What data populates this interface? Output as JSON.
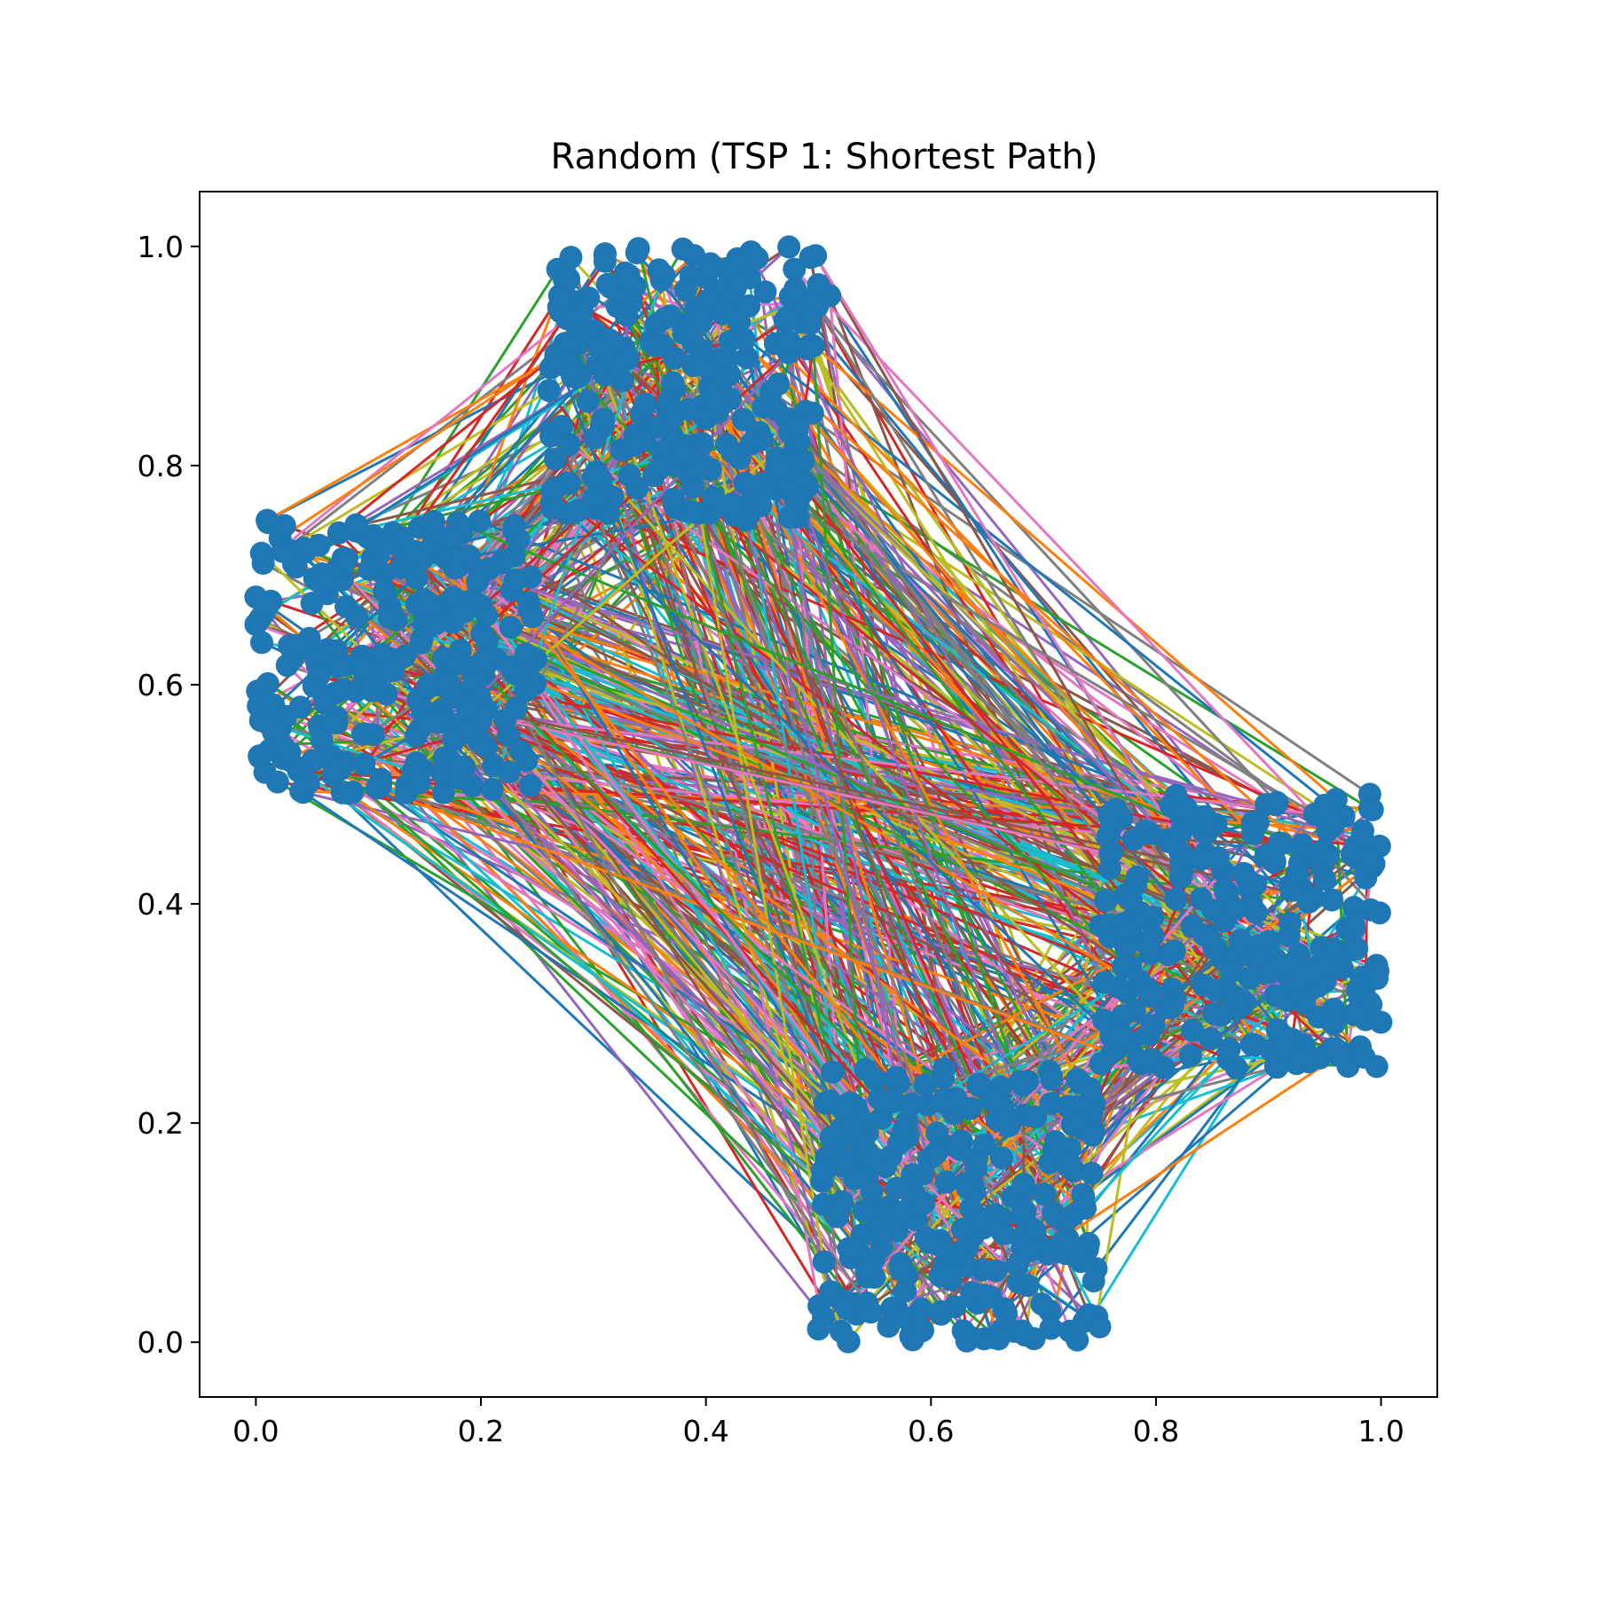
{
  "chart_data": {
    "type": "line",
    "title": "Random (TSP 1: Shortest Path)",
    "xlabel": "",
    "ylabel": "",
    "xlim": [
      -0.05,
      1.05
    ],
    "ylim": [
      -0.05,
      1.05
    ],
    "x_ticks": [
      "0.0",
      "0.2",
      "0.4",
      "0.6",
      "0.8",
      "1.0"
    ],
    "y_ticks": [
      "0.0",
      "0.2",
      "0.4",
      "0.6",
      "0.8",
      "1.0"
    ],
    "grid": false,
    "legend": "none",
    "marker_color": "#1f77b4",
    "edge_colors": [
      "#1f77b4",
      "#ff7f0e",
      "#2ca02c",
      "#d62728",
      "#9467bd",
      "#8c564b",
      "#e377c2",
      "#7f7f7f",
      "#bcbd22",
      "#17becf"
    ],
    "clusters": [
      {
        "name": "",
        "x_range": [
          0.0,
          0.25
        ],
        "y_range": [
          0.5,
          0.75
        ]
      },
      {
        "name": "",
        "x_range": [
          0.26,
          0.5
        ],
        "y_range": [
          0.75,
          1.0
        ]
      },
      {
        "name": "",
        "x_range": [
          0.75,
          1.0
        ],
        "y_range": [
          0.25,
          0.5
        ]
      },
      {
        "name": "",
        "x_range": [
          0.5,
          0.75
        ],
        "y_range": [
          0.0,
          0.25
        ]
      }
    ],
    "sample_points": [
      [
        0.01,
        0.75
      ],
      [
        0.005,
        0.72
      ],
      [
        0.0,
        0.68
      ],
      [
        0.0,
        0.655
      ],
      [
        0.003,
        0.535
      ],
      [
        0.008,
        0.52
      ],
      [
        0.04,
        0.503
      ],
      [
        0.09,
        0.745
      ],
      [
        0.23,
        0.745
      ],
      [
        0.01,
        0.565
      ],
      [
        0.27,
        0.955
      ],
      [
        0.28,
        0.99
      ],
      [
        0.34,
        0.998
      ],
      [
        0.44,
        0.995
      ],
      [
        0.5,
        0.965
      ],
      [
        0.51,
        0.955
      ],
      [
        0.3,
        0.77
      ],
      [
        0.48,
        0.768
      ],
      [
        0.285,
        0.93
      ],
      [
        0.99,
        0.5
      ],
      [
        0.99,
        0.487
      ],
      [
        0.99,
        0.44
      ],
      [
        0.99,
        0.31
      ],
      [
        0.985,
        0.26
      ],
      [
        0.76,
        0.47
      ],
      [
        0.76,
        0.28
      ],
      [
        0.93,
        0.26
      ],
      [
        0.95,
        0.49
      ],
      [
        0.5,
        0.012
      ],
      [
        0.52,
        0.01
      ],
      [
        0.66,
        0.003
      ],
      [
        0.73,
        0.002
      ],
      [
        0.75,
        0.014
      ],
      [
        0.51,
        0.22
      ],
      [
        0.73,
        0.24
      ],
      [
        0.74,
        0.09
      ],
      [
        0.55,
        0.24
      ]
    ]
  }
}
